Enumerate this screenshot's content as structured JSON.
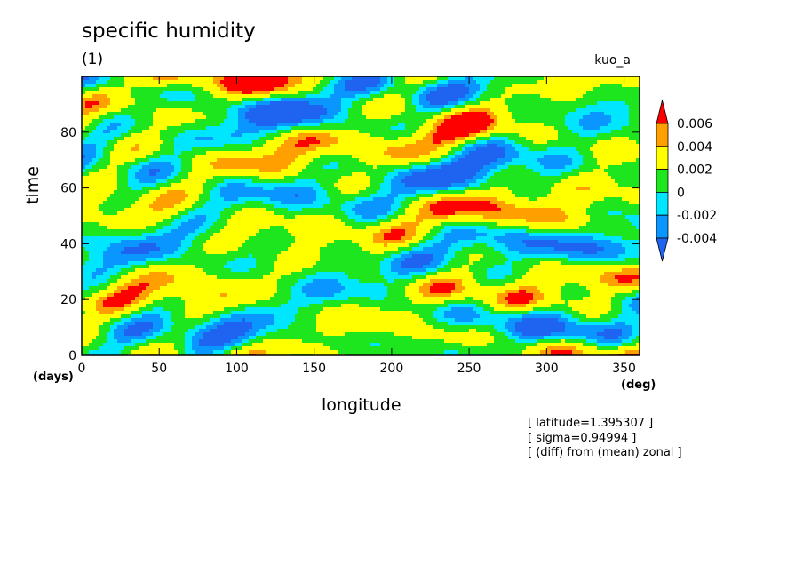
{
  "title": "specific humidity",
  "subtitle": "(1)",
  "run_label": "kuo_a",
  "notes": [
    "[ latitude=1.395307 ]",
    "[ sigma=0.94994 ]",
    "[ (diff) from (mean) zonal ]"
  ],
  "chart_data": {
    "type": "heatmap",
    "title": "specific humidity",
    "subtitle": "(1)",
    "xlabel": "longitude",
    "xunit": "(deg)",
    "ylabel": "time",
    "yunit": "(days)",
    "xlim": [
      0,
      360
    ],
    "ylim": [
      0,
      100
    ],
    "xticks": [
      0,
      50,
      100,
      150,
      200,
      250,
      300,
      350
    ],
    "yticks": [
      0,
      20,
      40,
      60,
      80
    ],
    "colorbar": {
      "levels": [
        "0.006",
        "0.004",
        "0.002",
        "0",
        "-0.002",
        "-0.004"
      ],
      "bins": [
        {
          "range": "< -0.004",
          "color": "#1e64f0"
        },
        {
          "range": "-0.004 to -0.002",
          "color": "#0a96ff"
        },
        {
          "range": "-0.002 to 0",
          "color": "#00e6ff"
        },
        {
          "range": "0 to 0.002",
          "color": "#1ee61e"
        },
        {
          "range": "0.002 to 0.004",
          "color": "#ffff00"
        },
        {
          "range": "0.004 to 0.006",
          "color": "#ffa000"
        },
        {
          "range": "> 0.006",
          "color": "#ff0000"
        }
      ],
      "extend": "both"
    },
    "pattern": "Dominant yellow/green (0 to 0.004) field with scattered elongated blue anomalies (-0.004 to -0.002) tilted diagonally; occasional orange patches (0.004 to 0.006)."
  }
}
